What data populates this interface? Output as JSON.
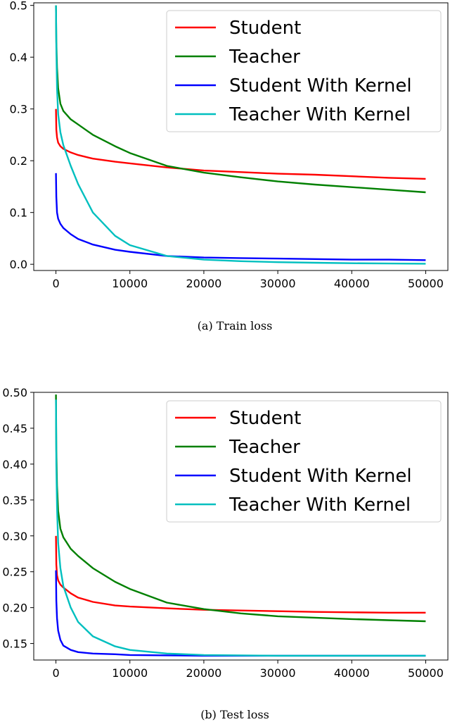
{
  "chart_data": [
    {
      "type": "line",
      "caption": "(a)  Train loss",
      "xlim": [
        -3000,
        53000
      ],
      "ylim": [
        -0.012,
        0.505
      ],
      "xticks": [
        0,
        10000,
        20000,
        30000,
        40000,
        50000
      ],
      "xtick_labels": [
        "0",
        "10000",
        "20000",
        "30000",
        "40000",
        "50000"
      ],
      "yticks": [
        0.0,
        0.1,
        0.2,
        0.3,
        0.4,
        0.5
      ],
      "ytick_labels": [
        "0.0",
        "0.1",
        "0.2",
        "0.3",
        "0.4",
        "0.5"
      ],
      "grid": false,
      "legend_position": "upper right",
      "series": [
        {
          "name": "Student",
          "color": "#ff0000",
          "points": [
            [
              0,
              0.3
            ],
            [
              50,
              0.26
            ],
            [
              150,
              0.245
            ],
            [
              300,
              0.235
            ],
            [
              600,
              0.228
            ],
            [
              1000,
              0.223
            ],
            [
              2000,
              0.216
            ],
            [
              3000,
              0.211
            ],
            [
              5000,
              0.204
            ],
            [
              8000,
              0.198
            ],
            [
              10000,
              0.195
            ],
            [
              15000,
              0.187
            ],
            [
              20000,
              0.181
            ],
            [
              25000,
              0.178
            ],
            [
              30000,
              0.175
            ],
            [
              35000,
              0.173
            ],
            [
              40000,
              0.17
            ],
            [
              45000,
              0.167
            ],
            [
              50000,
              0.165
            ]
          ]
        },
        {
          "name": "Teacher",
          "color": "#008000",
          "points": [
            [
              0,
              0.5
            ],
            [
              50,
              0.43
            ],
            [
              150,
              0.38
            ],
            [
              300,
              0.34
            ],
            [
              600,
              0.31
            ],
            [
              1000,
              0.296
            ],
            [
              2000,
              0.28
            ],
            [
              3000,
              0.27
            ],
            [
              5000,
              0.25
            ],
            [
              8000,
              0.228
            ],
            [
              10000,
              0.215
            ],
            [
              15000,
              0.19
            ],
            [
              20000,
              0.177
            ],
            [
              25000,
              0.168
            ],
            [
              30000,
              0.16
            ],
            [
              35000,
              0.154
            ],
            [
              40000,
              0.149
            ],
            [
              45000,
              0.144
            ],
            [
              50000,
              0.139
            ]
          ]
        },
        {
          "name": "Student With Kernel",
          "color": "#0000ff",
          "points": [
            [
              0,
              0.176
            ],
            [
              50,
              0.13
            ],
            [
              150,
              0.1
            ],
            [
              300,
              0.088
            ],
            [
              600,
              0.078
            ],
            [
              1000,
              0.07
            ],
            [
              2000,
              0.058
            ],
            [
              3000,
              0.049
            ],
            [
              5000,
              0.038
            ],
            [
              8000,
              0.028
            ],
            [
              10000,
              0.024
            ],
            [
              15000,
              0.016
            ],
            [
              20000,
              0.013
            ],
            [
              25000,
              0.012
            ],
            [
              30000,
              0.011
            ],
            [
              35000,
              0.01
            ],
            [
              40000,
              0.009
            ],
            [
              45000,
              0.009
            ],
            [
              50000,
              0.008
            ]
          ]
        },
        {
          "name": "Teacher With Kernel",
          "color": "#00bfbf",
          "points": [
            [
              0,
              0.5
            ],
            [
              50,
              0.42
            ],
            [
              150,
              0.34
            ],
            [
              300,
              0.29
            ],
            [
              600,
              0.255
            ],
            [
              1000,
              0.23
            ],
            [
              2000,
              0.19
            ],
            [
              3000,
              0.155
            ],
            [
              5000,
              0.1
            ],
            [
              8000,
              0.055
            ],
            [
              10000,
              0.037
            ],
            [
              15000,
              0.016
            ],
            [
              20000,
              0.009
            ],
            [
              25000,
              0.006
            ],
            [
              30000,
              0.004
            ],
            [
              35000,
              0.003
            ],
            [
              40000,
              0.002
            ],
            [
              45000,
              0.0015
            ],
            [
              50000,
              0.001
            ]
          ]
        }
      ]
    },
    {
      "type": "line",
      "caption": "(b)  Test loss",
      "xlim": [
        -3000,
        53000
      ],
      "ylim": [
        0.127,
        0.5
      ],
      "xticks": [
        0,
        10000,
        20000,
        30000,
        40000,
        50000
      ],
      "xtick_labels": [
        "0",
        "10000",
        "20000",
        "30000",
        "40000",
        "50000"
      ],
      "yticks": [
        0.15,
        0.2,
        0.25,
        0.3,
        0.35,
        0.4,
        0.45,
        0.5
      ],
      "ytick_labels": [
        "0.15",
        "0.20",
        "0.25",
        "0.30",
        "0.35",
        "0.40",
        "0.45",
        "0.50"
      ],
      "grid": false,
      "legend_position": "upper right",
      "series": [
        {
          "name": "Student",
          "color": "#ff0000",
          "points": [
            [
              0,
              0.3
            ],
            [
              50,
              0.26
            ],
            [
              150,
              0.245
            ],
            [
              300,
              0.238
            ],
            [
              600,
              0.232
            ],
            [
              1000,
              0.228
            ],
            [
              2000,
              0.22
            ],
            [
              3000,
              0.214
            ],
            [
              5000,
              0.208
            ],
            [
              8000,
              0.203
            ],
            [
              10000,
              0.2015
            ],
            [
              15000,
              0.199
            ],
            [
              20000,
              0.197
            ],
            [
              25000,
              0.196
            ],
            [
              30000,
              0.195
            ],
            [
              35000,
              0.194
            ],
            [
              40000,
              0.1935
            ],
            [
              45000,
              0.193
            ],
            [
              50000,
              0.193
            ]
          ]
        },
        {
          "name": "Teacher",
          "color": "#008000",
          "points": [
            [
              0,
              0.497
            ],
            [
              50,
              0.42
            ],
            [
              150,
              0.37
            ],
            [
              300,
              0.335
            ],
            [
              600,
              0.31
            ],
            [
              1000,
              0.298
            ],
            [
              2000,
              0.282
            ],
            [
              3000,
              0.272
            ],
            [
              5000,
              0.255
            ],
            [
              8000,
              0.236
            ],
            [
              10000,
              0.226
            ],
            [
              15000,
              0.207
            ],
            [
              20000,
              0.198
            ],
            [
              25000,
              0.192
            ],
            [
              30000,
              0.188
            ],
            [
              35000,
              0.186
            ],
            [
              40000,
              0.184
            ],
            [
              45000,
              0.1825
            ],
            [
              50000,
              0.181
            ]
          ]
        },
        {
          "name": "Student With Kernel",
          "color": "#0000ff",
          "points": [
            [
              0,
              0.252
            ],
            [
              50,
              0.21
            ],
            [
              150,
              0.185
            ],
            [
              300,
              0.168
            ],
            [
              600,
              0.155
            ],
            [
              1000,
              0.147
            ],
            [
              2000,
              0.141
            ],
            [
              3000,
              0.138
            ],
            [
              5000,
              0.136
            ],
            [
              8000,
              0.135
            ],
            [
              10000,
              0.134
            ],
            [
              15000,
              0.1335
            ],
            [
              20000,
              0.133
            ],
            [
              25000,
              0.133
            ],
            [
              30000,
              0.133
            ],
            [
              35000,
              0.133
            ],
            [
              40000,
              0.133
            ],
            [
              45000,
              0.133
            ],
            [
              50000,
              0.133
            ]
          ]
        },
        {
          "name": "Teacher With Kernel",
          "color": "#00bfbf",
          "points": [
            [
              0,
              0.49
            ],
            [
              50,
              0.4
            ],
            [
              150,
              0.34
            ],
            [
              300,
              0.29
            ],
            [
              600,
              0.255
            ],
            [
              1000,
              0.23
            ],
            [
              2000,
              0.2
            ],
            [
              3000,
              0.18
            ],
            [
              5000,
              0.16
            ],
            [
              8000,
              0.146
            ],
            [
              10000,
              0.141
            ],
            [
              15000,
              0.136
            ],
            [
              20000,
              0.134
            ],
            [
              25000,
              0.1335
            ],
            [
              30000,
              0.133
            ],
            [
              35000,
              0.133
            ],
            [
              40000,
              0.133
            ],
            [
              45000,
              0.133
            ],
            [
              50000,
              0.133
            ]
          ]
        }
      ]
    }
  ]
}
